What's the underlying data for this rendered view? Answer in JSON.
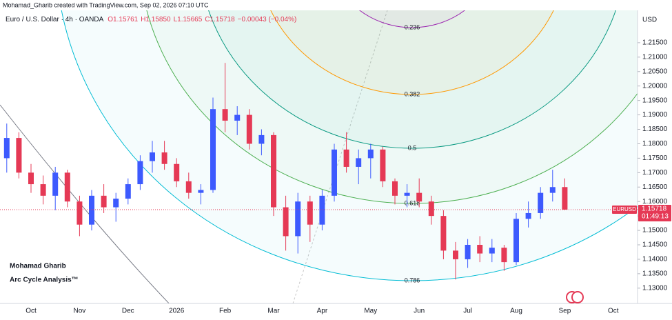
{
  "header": {
    "creator": "Mohamad_Gharib created with TradingView.com, Sep 02, 2026 07:10 UTC",
    "symbol": "Euro / U.S. Dollar · 4h · OANDA",
    "open": "O1.15761",
    "high": "H1.15850",
    "low": "L1.15665",
    "close": "C1.15718",
    "change": "−0.00043 (−0.04%)"
  },
  "chart_data": {
    "type": "candlestick",
    "currency": "USD",
    "countdown": "01:49:13",
    "annotations": [
      "Mohamad Gharib",
      "Arc Cycle Analysis™"
    ],
    "fib_arcs": [
      {
        "label": "0.236",
        "color": "#9c27b0"
      },
      {
        "label": "0.382",
        "color": "#ff9800"
      },
      {
        "label": "0.5",
        "color": "#089981"
      },
      {
        "label": "0.618",
        "color": "#4caf50"
      },
      {
        "label": "0.786",
        "color": "#00bcd4"
      }
    ],
    "categories": [
      null,
      null,
      "Oct",
      null,
      null,
      null,
      "Nov",
      null,
      null,
      null,
      "Dec",
      null,
      null,
      null,
      "2026",
      null,
      null,
      null,
      "Feb",
      null,
      null,
      null,
      "Mar",
      null,
      null,
      null,
      "Apr",
      null,
      null,
      null,
      "May",
      null,
      null,
      null,
      "Jun",
      null,
      null,
      null,
      "Jul",
      null,
      null,
      null,
      "Aug",
      null,
      null,
      null,
      "Sep",
      null,
      null,
      null,
      "Oct"
    ],
    "series": [
      {
        "name": "EURUSD",
        "up_color": "#3d5afe",
        "down_color": "#e53955",
        "open": [
          1.175,
          1.182,
          1.17,
          1.166,
          1.162,
          1.17,
          1.16,
          1.152,
          1.162,
          1.158,
          1.161,
          1.166,
          1.174,
          1.177,
          1.173,
          1.167,
          1.163,
          1.164,
          1.192,
          1.188,
          1.19,
          1.18,
          1.183,
          1.158,
          1.148,
          1.16,
          1.152,
          1.162,
          1.178,
          1.172,
          1.175,
          1.178,
          1.167,
          1.162,
          1.163,
          1.16,
          1.155,
          1.143,
          1.14,
          1.145,
          1.142,
          1.144,
          1.139,
          1.154,
          1.156,
          1.163,
          1.165,
          null,
          null,
          null,
          null
        ],
        "high": [
          1.187,
          1.184,
          1.173,
          1.169,
          1.172,
          1.171,
          1.162,
          1.164,
          1.166,
          1.163,
          1.168,
          1.176,
          1.181,
          1.181,
          1.175,
          1.17,
          1.166,
          1.196,
          1.208,
          1.193,
          1.192,
          1.185,
          1.184,
          1.162,
          1.163,
          1.162,
          1.164,
          1.18,
          1.184,
          1.178,
          1.18,
          1.179,
          1.168,
          1.166,
          1.168,
          1.162,
          1.157,
          1.146,
          1.147,
          1.148,
          1.147,
          1.145,
          1.156,
          1.16,
          1.165,
          1.171,
          1.168,
          null,
          null,
          null,
          null
        ],
        "low": [
          1.17,
          1.168,
          1.163,
          1.159,
          1.157,
          1.158,
          1.148,
          1.15,
          1.156,
          1.153,
          1.159,
          1.164,
          1.17,
          1.171,
          1.165,
          1.161,
          1.159,
          1.163,
          1.184,
          1.183,
          1.178,
          1.176,
          1.155,
          1.143,
          1.142,
          1.146,
          1.15,
          1.16,
          1.17,
          1.166,
          1.168,
          1.165,
          1.159,
          1.158,
          1.158,
          1.152,
          1.14,
          1.133,
          1.137,
          1.139,
          1.139,
          1.136,
          1.138,
          1.151,
          1.154,
          1.16,
          1.157,
          null,
          null,
          null,
          null
        ],
        "close": [
          1.182,
          1.17,
          1.166,
          1.162,
          1.17,
          1.16,
          1.152,
          1.162,
          1.158,
          1.161,
          1.166,
          1.174,
          1.177,
          1.173,
          1.167,
          1.163,
          1.164,
          1.192,
          1.188,
          1.19,
          1.18,
          1.183,
          1.158,
          1.148,
          1.16,
          1.152,
          1.162,
          1.178,
          1.172,
          1.175,
          1.178,
          1.167,
          1.162,
          1.163,
          1.16,
          1.155,
          1.143,
          1.14,
          1.145,
          1.142,
          1.144,
          1.139,
          1.154,
          1.156,
          1.163,
          1.165,
          1.15718,
          null,
          null,
          null,
          null
        ]
      }
    ],
    "ylim": [
      1.1247,
      1.2262
    ],
    "yticks": [
      {
        "value": 1.13,
        "label": "1.13000"
      },
      {
        "value": 1.135,
        "label": "1.13500"
      },
      {
        "value": 1.14,
        "label": "1.14000"
      },
      {
        "value": 1.145,
        "label": "1.14500"
      },
      {
        "value": 1.15,
        "label": "1.15000"
      },
      {
        "value": 1.155,
        "label": "1.15500"
      },
      {
        "value": 1.16,
        "label": "1.16000"
      },
      {
        "value": 1.165,
        "label": "1.16500"
      },
      {
        "value": 1.17,
        "label": "1.17000"
      },
      {
        "value": 1.175,
        "label": "1.17500"
      },
      {
        "value": 1.18,
        "label": "1.18000"
      },
      {
        "value": 1.185,
        "label": "1.18500"
      },
      {
        "value": 1.19,
        "label": "1.19000"
      },
      {
        "value": 1.195,
        "label": "1.19500"
      },
      {
        "value": 1.2,
        "label": "1.20000"
      },
      {
        "value": 1.205,
        "label": "1.20500"
      },
      {
        "value": 1.21,
        "label": "1.21000"
      },
      {
        "value": 1.215,
        "label": "1.21500"
      }
    ],
    "grid": false
  }
}
